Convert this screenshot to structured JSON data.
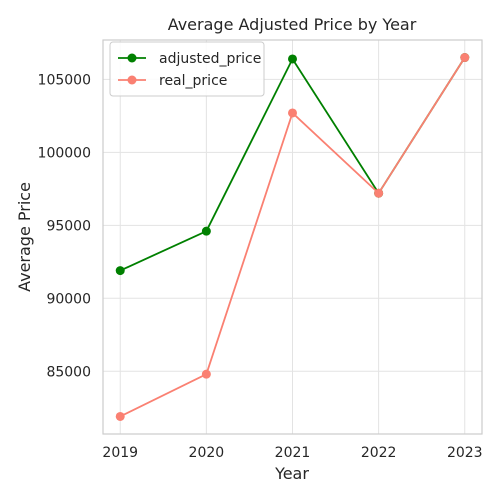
{
  "chart_data": {
    "type": "line",
    "title": "Average Adjusted Price by Year",
    "xlabel": "Year",
    "ylabel": "Average Price",
    "categories": [
      "2019",
      "2020",
      "2021",
      "2022",
      "2023"
    ],
    "x": [
      2019,
      2020,
      2021,
      2022,
      2023
    ],
    "y_ticks": [
      85000,
      90000,
      95000,
      100000,
      105000
    ],
    "y_tick_labels": [
      "85000",
      "90000",
      "95000",
      "100000",
      "105000"
    ],
    "ylim": [
      80700,
      107700
    ],
    "xlim": [
      2018.8,
      2023.2
    ],
    "grid": true,
    "legend_position": "top-left",
    "series": [
      {
        "name": "adjusted_price",
        "color": "#008000",
        "marker": "circle",
        "values": [
          91900,
          94600,
          106400,
          97200,
          106500
        ]
      },
      {
        "name": "real_price",
        "color": "#fa8072",
        "marker": "circle",
        "values": [
          81900,
          84800,
          102700,
          97200,
          106500
        ]
      }
    ]
  }
}
